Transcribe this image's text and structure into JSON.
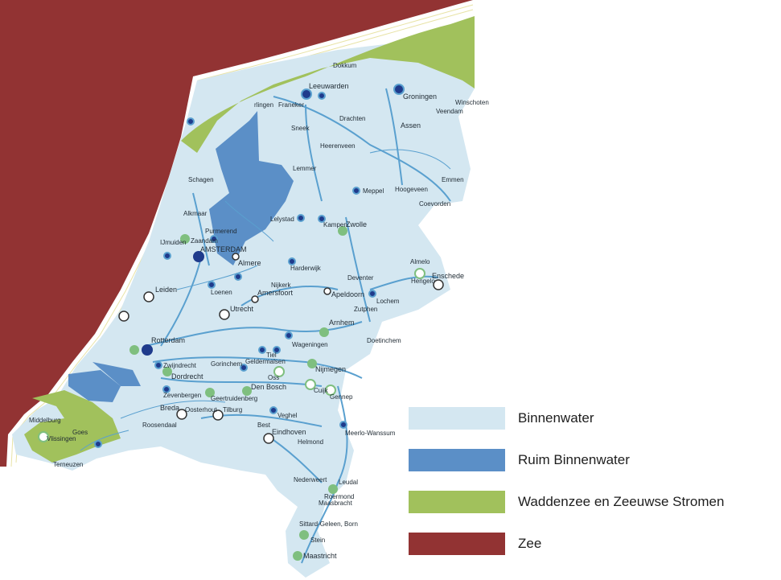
{
  "legend": [
    {
      "label": "Binnenwater",
      "color": "#d4e7f1"
    },
    {
      "label": "Ruim Binnenwater",
      "color": "#5b8fc7"
    },
    {
      "label": "Waddenzee en Zeeuwse Stromen",
      "color": "#a1c15c"
    },
    {
      "label": "Zee",
      "color": "#923333"
    }
  ],
  "colors": {
    "land": "#d4e7f1",
    "river": "#5aa0cf",
    "ruim": "#5b8fc7",
    "wadden": "#a1c15c",
    "zee": "#923333",
    "node_dark": "#1f3b8c",
    "node_green": "#7fbf7f"
  },
  "cities": {
    "dokkum": "Dokkum",
    "leeuwarden": "Leeuwarden",
    "groningen": "Groningen",
    "winschoten": "Winschoten",
    "veendam": "Veendam",
    "harlingen": "rlingen",
    "franeker": "Franeker",
    "drachten": "Drachten",
    "assen": "Assen",
    "sneek": "Sneek",
    "heerenveen": "Heerenveen",
    "lemmer": "Lemmer",
    "emmen": "Emmen",
    "schagen": "Schagen",
    "meppel": "Meppel",
    "hoogeveen": "Hoogeveen",
    "coevorden": "Coevorden",
    "alkmaar": "Alkmaar",
    "lelystad": "Lelystad",
    "kampen": "Kampen",
    "zwolle": "Zwolle",
    "purmerend": "Purmerend",
    "ijmuiden": "IJmuiden",
    "zaandam": "Zaandam",
    "amsterdam": "AMSTERDAM",
    "almere": "Almere",
    "harderwijk": "Harderwijk",
    "almelo": "Almelo",
    "hengelo": "Hengelo",
    "enschede": "Enschede",
    "leiden": "Leiden",
    "loenen": "Loenen",
    "nijkerk": "Nijkerk",
    "amersfoort": "Amersfoort",
    "deventer": "Deventer",
    "apeldoorn": "Apeldoorn",
    "lochem": "Lochem",
    "zutphen": "Zutphen",
    "utrecht": "Utrecht",
    "rotterdam": "Rotterdam",
    "arnhem": "Arnhem",
    "doetinchem": "Doetinchem",
    "wageningen": "Wageningen",
    "tiel": "Tiel",
    "geldermalsen": "Geldermalsen",
    "gorinchem": "Gorinchem",
    "zwijndrecht": "Zwijndrecht",
    "dordrecht": "Dordrecht",
    "oss": "Oss",
    "nijmegen": "Nijmegen",
    "den_bosch": "Den Bosch",
    "cuijk": "Cuijk",
    "gennep": "Gennep",
    "zevenbergen": "Zevenbergen",
    "geertruidenberg": "Geertruidenberg",
    "breda": "Breda",
    "oosterhout": "Oosterhout",
    "tilburg": "Tilburg",
    "veghel": "Veghel",
    "middelburg": "Middelburg",
    "goes": "Goes",
    "vlissingen": "Vlissingen",
    "roosendaal": "Roosendaal",
    "best": "Best",
    "eindhoven": "Eindhoven",
    "meerlo": "Meerlo-Wanssum",
    "helmond": "Helmond",
    "terneuzen": "Terneuzen",
    "nederweert": "Nederweert",
    "leudal": "Leudal",
    "roermond": "Roermond",
    "maasbracht": "Maasbracht",
    "sittard": "Sittard-Geleen, Born",
    "stein": "Stein",
    "maastricht": "Maastricht"
  }
}
